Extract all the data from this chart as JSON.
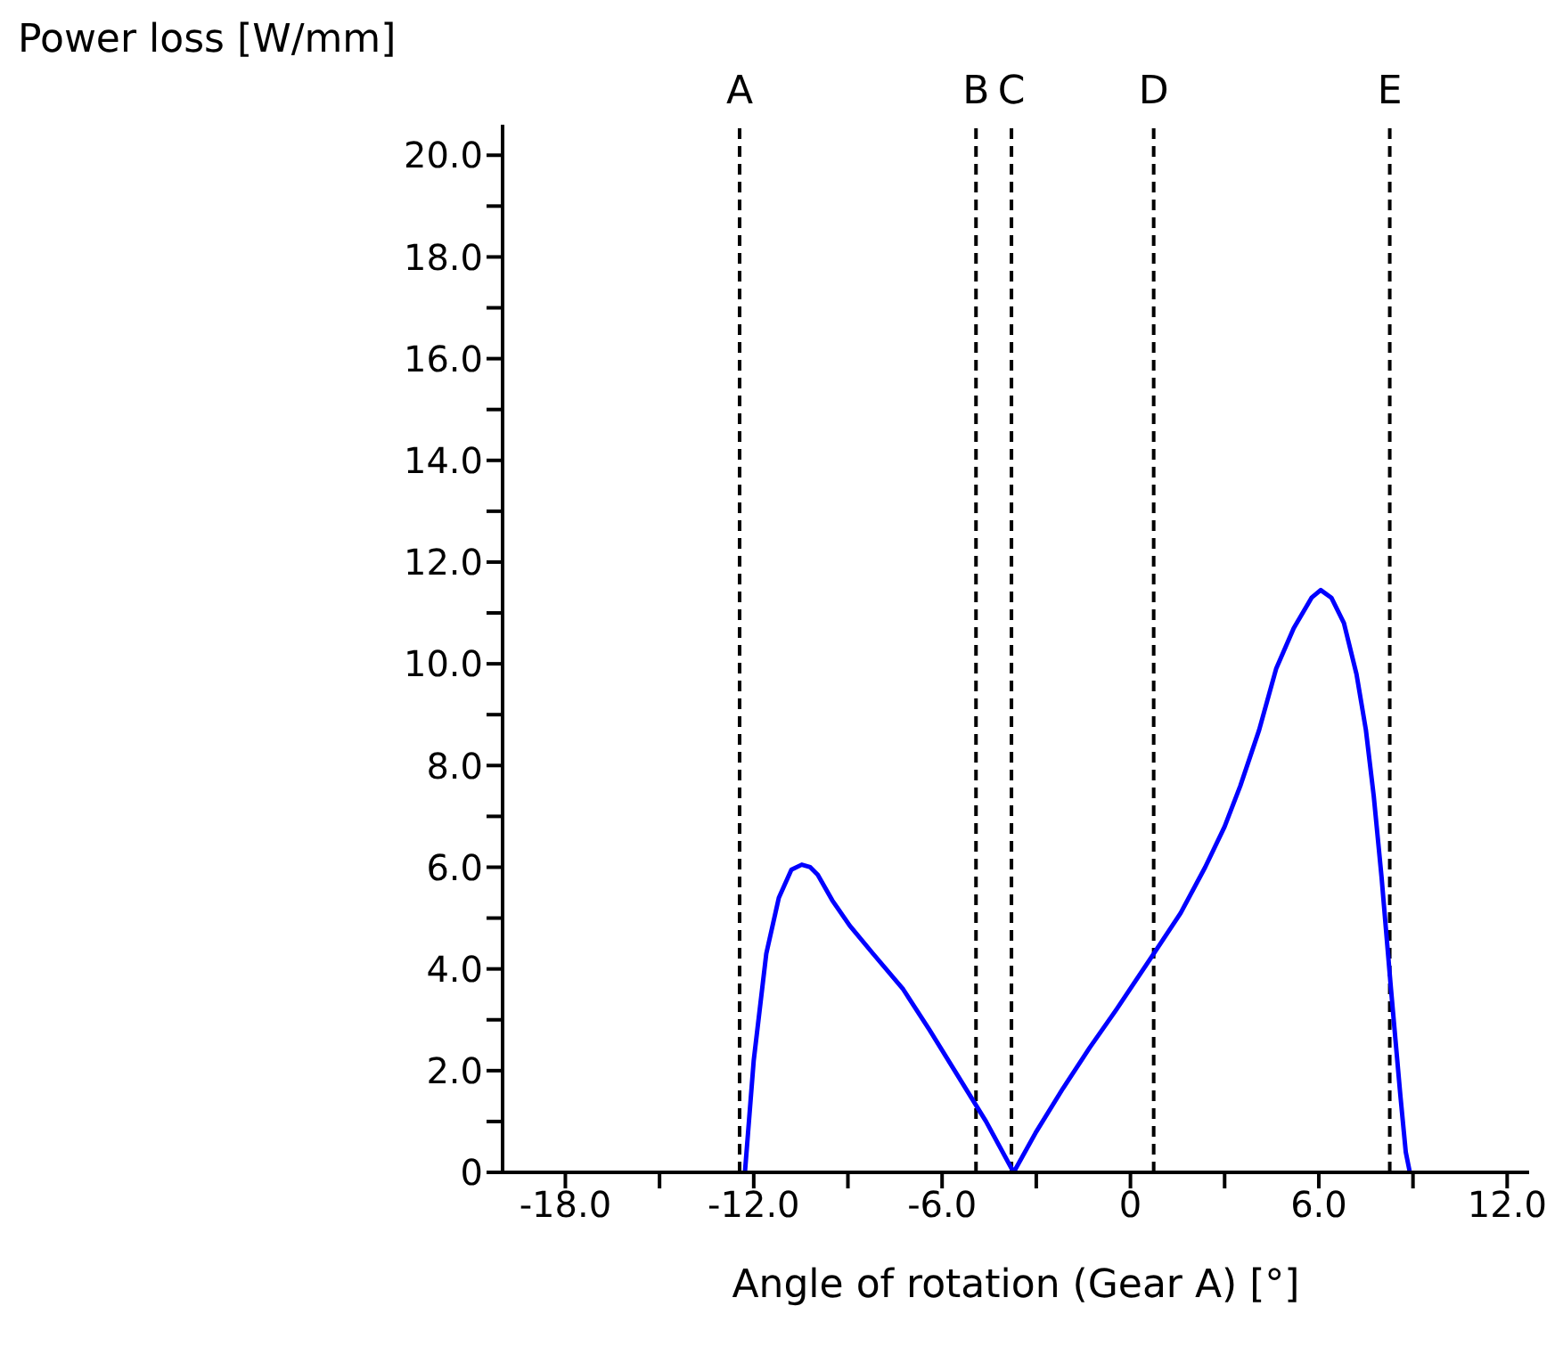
{
  "chart_data": {
    "type": "line",
    "xlabel": "Angle of rotation (Gear A) [°]",
    "ylabel": "Power loss [W/mm]",
    "series": [
      {
        "color": "#0000ff",
        "x": [
          -12.28,
          -12.0,
          -11.6,
          -11.2,
          -10.8,
          -10.47,
          -10.2,
          -9.96,
          -9.5,
          -8.94,
          -8.2,
          -7.24,
          -6.4,
          -5.55,
          -4.6,
          -3.72,
          -3.0,
          -2.15,
          -1.3,
          -0.45,
          0.74,
          1.6,
          2.38,
          3.0,
          3.5,
          4.1,
          4.64,
          5.2,
          5.77,
          6.06,
          6.4,
          6.8,
          7.2,
          7.5,
          7.75,
          8.0,
          8.3,
          8.6,
          8.77,
          8.9
        ],
        "values": [
          0,
          2.2,
          4.3,
          5.4,
          5.95,
          6.05,
          6.0,
          5.85,
          5.35,
          4.85,
          4.3,
          3.6,
          2.8,
          1.95,
          1.0,
          0,
          0.8,
          1.65,
          2.45,
          3.2,
          4.3,
          5.1,
          6.0,
          6.8,
          7.6,
          8.7,
          9.9,
          10.7,
          11.3,
          11.45,
          11.3,
          10.8,
          9.8,
          8.7,
          7.4,
          5.8,
          3.6,
          1.5,
          0.4,
          0
        ]
      }
    ],
    "xlim": [
      -20,
      12.7
    ],
    "ylim": [
      0,
      20.6
    ],
    "xticks": [
      {
        "value": -18,
        "label": "-18.0"
      },
      {
        "value": -15,
        "label": null
      },
      {
        "value": -12,
        "label": "-12.0"
      },
      {
        "value": -9,
        "label": null
      },
      {
        "value": -6,
        "label": "-6.0"
      },
      {
        "value": -3,
        "label": null
      },
      0,
      {
        "value": 3,
        "label": null
      },
      {
        "value": 6,
        "label": "6.0"
      },
      {
        "value": 9,
        "label": null
      },
      {
        "value": 12,
        "label": "12.0"
      }
    ],
    "yticks": [
      0,
      {
        "value": 1,
        "label": null
      },
      {
        "value": 2,
        "label": "2.0"
      },
      {
        "value": 3,
        "label": null
      },
      {
        "value": 4,
        "label": "4.0"
      },
      {
        "value": 5,
        "label": null
      },
      {
        "value": 6,
        "label": "6.0"
      },
      {
        "value": 7,
        "label": null
      },
      {
        "value": 8,
        "label": "8.0"
      },
      {
        "value": 9,
        "label": null
      },
      {
        "value": 10,
        "label": "10.0"
      },
      {
        "value": 11,
        "label": null
      },
      {
        "value": 12,
        "label": "12.0"
      },
      {
        "value": 13,
        "label": null
      },
      {
        "value": 14,
        "label": "14.0"
      },
      {
        "value": 15,
        "label": null
      },
      {
        "value": 16,
        "label": "16.0"
      },
      {
        "value": 17,
        "label": null
      },
      {
        "value": 18,
        "label": "18.0"
      },
      {
        "value": 19,
        "label": null
      },
      {
        "value": 20,
        "label": "20.0"
      }
    ],
    "ref_lines": [
      {
        "axis": "x",
        "value": -12.45,
        "label": "A",
        "color": "#000000",
        "line_style": "dashed"
      },
      {
        "axis": "x",
        "value": -4.92,
        "label": "B",
        "color": "#000000",
        "line_style": "dashed"
      },
      {
        "axis": "x",
        "value": -3.79,
        "label": "C",
        "color": "#000000",
        "line_style": "dashed"
      },
      {
        "axis": "x",
        "value": 0.74,
        "label": "D",
        "color": "#000000",
        "line_style": "dashed"
      },
      {
        "axis": "x",
        "value": 8.26,
        "label": "E",
        "color": "#000000",
        "line_style": "dashed"
      }
    ],
    "grid": false,
    "legend": false
  }
}
